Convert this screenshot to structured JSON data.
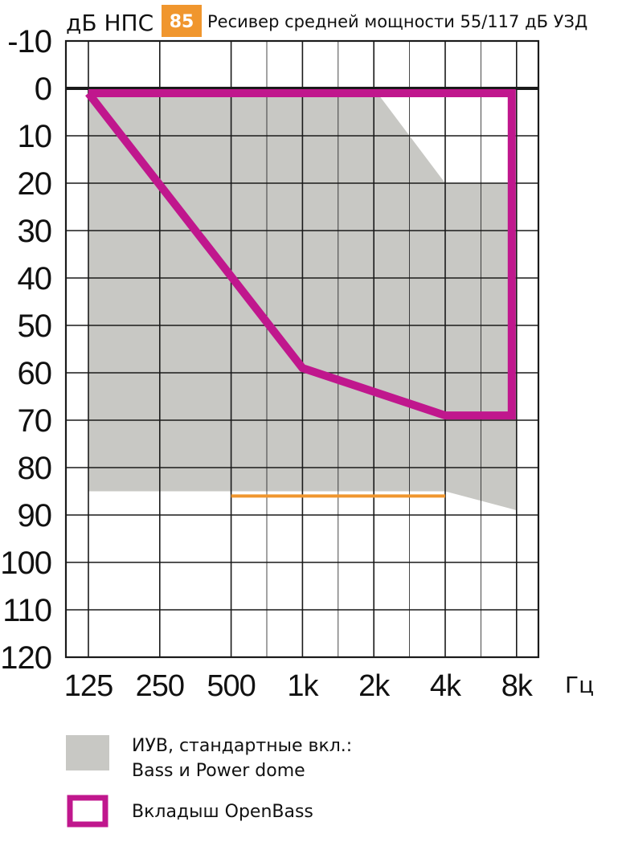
{
  "header": {
    "ylabel": "дБ НПС",
    "badge": "85",
    "title": "Ресивер средней мощности 55/117 дБ УЗД"
  },
  "chart_data": {
    "type": "area",
    "x_ticks": [
      "125",
      "250",
      "500",
      "1k",
      "2k",
      "4k",
      "8k"
    ],
    "x_unit": "Гц",
    "x_scale": "log",
    "y_ticks": [
      -10,
      0,
      10,
      20,
      30,
      40,
      50,
      60,
      70,
      80,
      90,
      100,
      110,
      120
    ],
    "y_range": [
      -10,
      120
    ],
    "y_inverted": true,
    "grid": true,
    "series": [
      {
        "name": "ИУВ, стандартные вкл.: Bass и Power dome",
        "kind": "filled-area",
        "color": "#c8c8c4",
        "top": [
          {
            "x": 125,
            "y": 0
          },
          {
            "x": 2000,
            "y": 0
          },
          {
            "x": 4000,
            "y": 20
          },
          {
            "x": 8000,
            "y": 20
          }
        ],
        "bottom": [
          {
            "x": 125,
            "y": 85
          },
          {
            "x": 4000,
            "y": 85
          },
          {
            "x": 8000,
            "y": 89
          }
        ]
      },
      {
        "name": "Вкладыш OpenBass",
        "kind": "outline",
        "color": "#c0178d",
        "points": [
          {
            "x": 125,
            "y": 0
          },
          {
            "x": 8000,
            "y": 0
          },
          {
            "x": 8000,
            "y": 69
          },
          {
            "x": 4000,
            "y": 69
          },
          {
            "x": 1000,
            "y": 59
          },
          {
            "x": 125,
            "y": 0
          }
        ]
      },
      {
        "kind": "reference-line",
        "color": "#f0962e",
        "points": [
          {
            "x": 500,
            "y": 86
          },
          {
            "x": 4000,
            "y": 86
          }
        ]
      }
    ]
  },
  "legend": {
    "items": [
      {
        "line1": "ИУВ, стандартные вкл.:",
        "line2": "Bass и Power dome",
        "swatch": "filled",
        "color": "#c8c8c4"
      },
      {
        "line1": "Вкладыш OpenBass",
        "line2": "",
        "swatch": "outline",
        "color": "#c0178d"
      }
    ]
  },
  "colors": {
    "badge_bg": "#f0962e",
    "grid": "#1a1a1a",
    "zero_line": "#1a1a1a"
  }
}
